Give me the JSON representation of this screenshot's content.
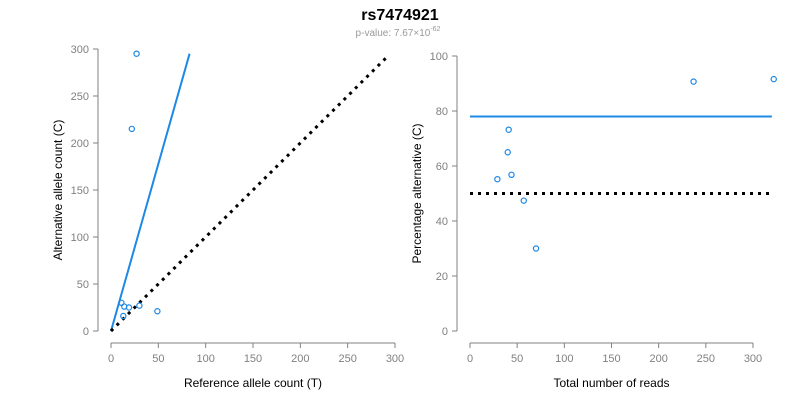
{
  "title": "rs7474921",
  "subtitle": {
    "prefix": "p-value: 7.67×10",
    "exponent": "-62"
  },
  "colors": {
    "points": "#1e88e5",
    "fit_line": "#1e88e5",
    "reference_line": "#000000",
    "axis": "#808080"
  },
  "chart_data": [
    {
      "type": "scatter",
      "xlabel": "Reference allele count (T)",
      "ylabel": "Alternative allele count (C)",
      "xlim": [
        0,
        300
      ],
      "ylim": [
        0,
        300
      ],
      "xticks": [
        0,
        50,
        100,
        150,
        200,
        250,
        300
      ],
      "yticks": [
        0,
        50,
        100,
        150,
        200,
        250,
        300
      ],
      "points": [
        [
          27,
          295
        ],
        [
          22,
          215
        ],
        [
          11,
          30
        ],
        [
          14,
          26
        ],
        [
          19,
          25
        ],
        [
          13,
          16
        ],
        [
          30,
          27
        ],
        [
          49,
          21
        ]
      ],
      "lines": [
        {
          "style": "solid",
          "color": "#1e88e5",
          "from": [
            0,
            0
          ],
          "to": [
            83,
            295
          ]
        },
        {
          "style": "dotted",
          "color": "#000000",
          "from": [
            0,
            0
          ],
          "to": [
            292,
            292
          ]
        }
      ]
    },
    {
      "type": "scatter",
      "xlabel": "Total number of reads",
      "ylabel": "Percentage alternative (C)",
      "xlim": [
        0,
        320
      ],
      "ylim": [
        0,
        100
      ],
      "xticks": [
        0,
        50,
        100,
        150,
        200,
        250,
        300
      ],
      "yticks": [
        0,
        20,
        40,
        60,
        80,
        100
      ],
      "points": [
        [
          322,
          91.6
        ],
        [
          237,
          90.7
        ],
        [
          41,
          73.2
        ],
        [
          40,
          65
        ],
        [
          44,
          56.8
        ],
        [
          29,
          55.2
        ],
        [
          57,
          47.4
        ],
        [
          70,
          30
        ]
      ],
      "lines": [
        {
          "style": "solid",
          "color": "#1e88e5",
          "from": [
            0,
            78
          ],
          "to": [
            320,
            78
          ]
        },
        {
          "style": "dotted",
          "color": "#000000",
          "from": [
            0,
            50
          ],
          "to": [
            320,
            50
          ]
        }
      ]
    }
  ]
}
